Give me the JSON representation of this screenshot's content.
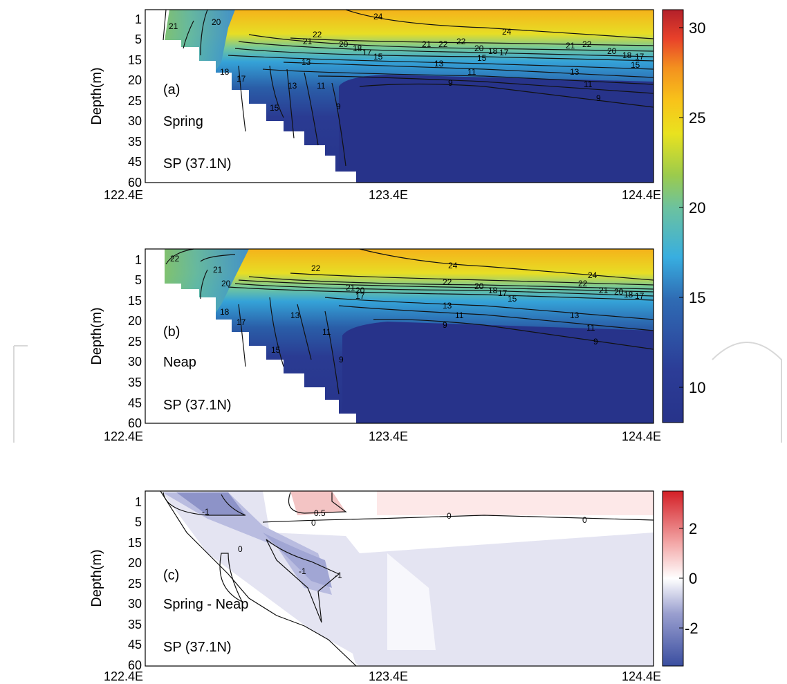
{
  "chart_data": [
    {
      "type": "heatmap",
      "panel": "a",
      "ylabel": "Depth(m)",
      "xticks": [
        "122.4E",
        "123.4E",
        "124.4E"
      ],
      "yticks": [
        "1",
        "5",
        "15",
        "20",
        "25",
        "30",
        "35",
        "45",
        "60"
      ],
      "annotations": [
        "(a)",
        "Spring",
        "SP (37.1N)"
      ],
      "contour_labels": [
        "21",
        "20",
        "22",
        "21",
        "20",
        "18",
        "17",
        "15",
        "24",
        "24",
        "22",
        "21",
        "22",
        "20",
        "18",
        "17",
        "15",
        "21",
        "22",
        "20",
        "18",
        "17",
        "15",
        "13",
        "13",
        "13",
        "11",
        "11",
        "9",
        "9",
        "18",
        "17",
        "15",
        "13",
        "11",
        "9",
        "15"
      ],
      "colorbar": {
        "min": 8,
        "max": 31,
        "ticks": [
          "30",
          "25",
          "20",
          "15",
          "10"
        ]
      }
    },
    {
      "type": "heatmap",
      "panel": "b",
      "ylabel": "Depth(m)",
      "xticks": [
        "122.4E",
        "123.4E",
        "124.4E"
      ],
      "yticks": [
        "1",
        "5",
        "15",
        "20",
        "25",
        "30",
        "35",
        "45",
        "60"
      ],
      "annotations": [
        "(b)",
        "Neap",
        "SP (37.1N)"
      ],
      "contour_labels": [
        "22",
        "21",
        "20",
        "22",
        "24",
        "24",
        "22",
        "21",
        "20",
        "18",
        "17",
        "15",
        "22",
        "21",
        "20",
        "18",
        "17",
        "15",
        "22",
        "21",
        "20",
        "17",
        "13",
        "13",
        "11",
        "11",
        "9",
        "9",
        "18",
        "17",
        "15",
        "13",
        "11",
        "9"
      ]
    },
    {
      "type": "heatmap",
      "panel": "c",
      "ylabel": "Depth(m)",
      "xticks": [
        "122.4E",
        "123.4E",
        "124.4E"
      ],
      "yticks": [
        "1",
        "5",
        "15",
        "20",
        "25",
        "30",
        "35",
        "45",
        "60"
      ],
      "annotations": [
        "(c)",
        "Spring - Neap",
        "SP (37.1N)"
      ],
      "contour_labels": [
        "-1",
        "0.5",
        "0",
        "0",
        "0",
        "0",
        "-1",
        "-1"
      ],
      "colorbar": {
        "min": -3.5,
        "max": 3.5,
        "ticks": [
          "2",
          "0",
          "-2"
        ]
      }
    }
  ]
}
